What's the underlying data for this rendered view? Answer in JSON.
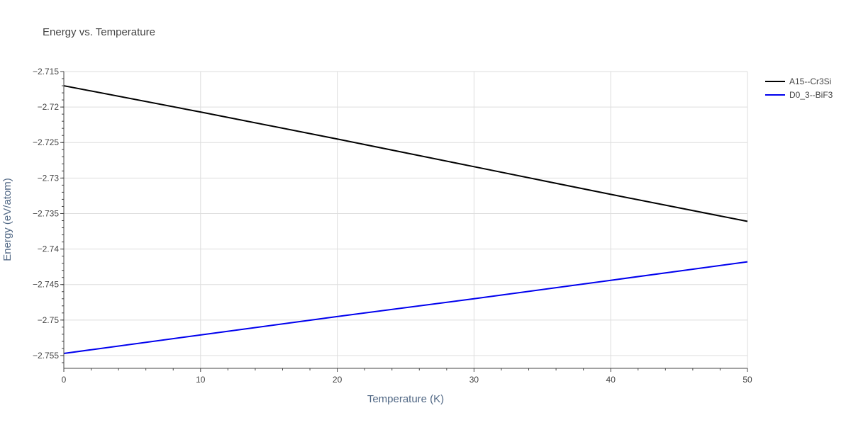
{
  "chart_data": {
    "type": "line",
    "title": "Energy vs. Temperature",
    "xlabel": "Temperature (K)",
    "ylabel": "Energy (eV/atom)",
    "xlim": [
      0,
      50
    ],
    "ylim": [
      -2.7568,
      -2.715
    ],
    "xticks": [
      0,
      10,
      20,
      30,
      40,
      50
    ],
    "xtick_labels": [
      "0",
      "10",
      "20",
      "30",
      "40",
      "50"
    ],
    "yticks": [
      -2.715,
      -2.72,
      -2.725,
      -2.73,
      -2.735,
      -2.74,
      -2.745,
      -2.75,
      -2.755
    ],
    "ytick_labels": [
      "−2.715",
      "−2.72",
      "−2.725",
      "−2.73",
      "−2.735",
      "−2.74",
      "−2.745",
      "−2.75",
      "−2.755"
    ],
    "grid": true,
    "legend_position": "top-right",
    "series": [
      {
        "name": "A15--Cr3Si",
        "color": "#000000",
        "x": [
          0,
          10,
          20,
          30,
          40,
          50
        ],
        "y": [
          -2.717,
          -2.7207,
          -2.7245,
          -2.7284,
          -2.7323,
          -2.7361
        ]
      },
      {
        "name": "D0_3--BiF3",
        "color": "#0000ee",
        "x": [
          0,
          10,
          20,
          30,
          40,
          50
        ],
        "y": [
          -2.7547,
          -2.7521,
          -2.7495,
          -2.747,
          -2.7444,
          -2.7418
        ]
      }
    ]
  }
}
